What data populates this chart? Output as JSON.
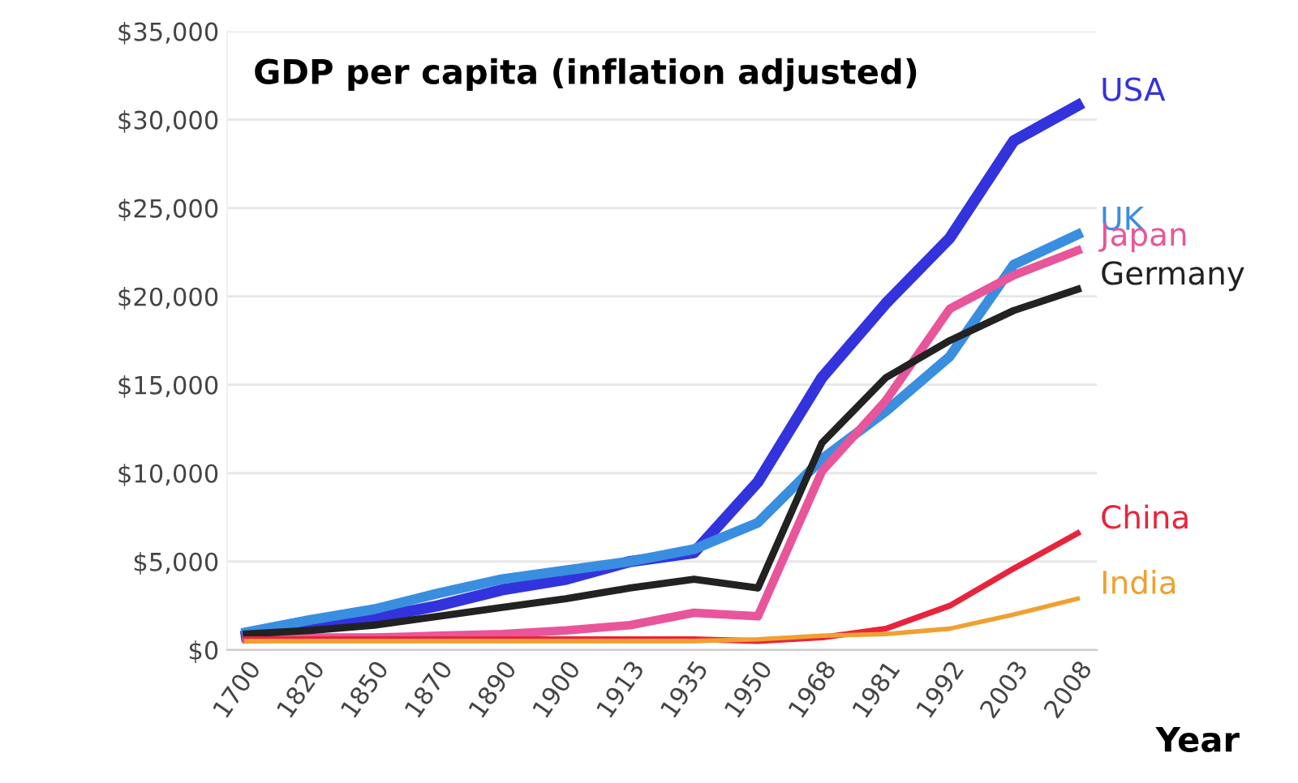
{
  "chart_data": {
    "type": "line",
    "title": "GDP per capita (inflation adjusted)",
    "xlabel": "Year",
    "categories": [
      "1700",
      "1820",
      "1850",
      "1870",
      "1890",
      "1900",
      "1913",
      "1935",
      "1950",
      "1968",
      "1981",
      "1992",
      "2003",
      "2008"
    ],
    "series": [
      {
        "name": "USA",
        "color": "#3333dd",
        "values": [
          800,
          1300,
          1800,
          2500,
          3400,
          4000,
          5000,
          5500,
          9500,
          15400,
          19600,
          23300,
          28800,
          30800
        ]
      },
      {
        "name": "UK",
        "color": "#3a8ee0",
        "values": [
          1000,
          1700,
          2300,
          3200,
          4000,
          4500,
          5000,
          5700,
          7200,
          10800,
          13500,
          16600,
          21800,
          23500
        ]
      },
      {
        "name": "Japan",
        "color": "#e8559a",
        "values": [
          600,
          700,
          700,
          800,
          900,
          1100,
          1400,
          2100,
          1900,
          10100,
          14100,
          19300,
          21200,
          22600
        ]
      },
      {
        "name": "Germany",
        "color": "#222222",
        "values": [
          900,
          1100,
          1400,
          1900,
          2400,
          2900,
          3500,
          4000,
          3500,
          11700,
          15400,
          17500,
          19200,
          20400
        ]
      },
      {
        "name": "China",
        "color": "#e8243c",
        "values": [
          600,
          600,
          600,
          600,
          600,
          600,
          600,
          600,
          500,
          700,
          1200,
          2500,
          4600,
          6600
        ]
      },
      {
        "name": "India",
        "color": "#f0a030",
        "values": [
          500,
          500,
          500,
          500,
          500,
          500,
          500,
          500,
          600,
          800,
          900,
          1200,
          2000,
          2900
        ]
      }
    ],
    "ylim": [
      0,
      35000
    ],
    "yticks": [
      {
        "value": 0,
        "label": "$0"
      },
      {
        "value": 5000,
        "label": "$5,000"
      },
      {
        "value": 10000,
        "label": "$10,000"
      },
      {
        "value": 15000,
        "label": "$15,000"
      },
      {
        "value": 20000,
        "label": "$20,000"
      },
      {
        "value": 25000,
        "label": "$25,000"
      },
      {
        "value": 30000,
        "label": "$30,000"
      },
      {
        "value": 35000,
        "label": "$35,000"
      }
    ],
    "grid": "y",
    "legend": false,
    "marker": "none",
    "line_style": "solid"
  }
}
